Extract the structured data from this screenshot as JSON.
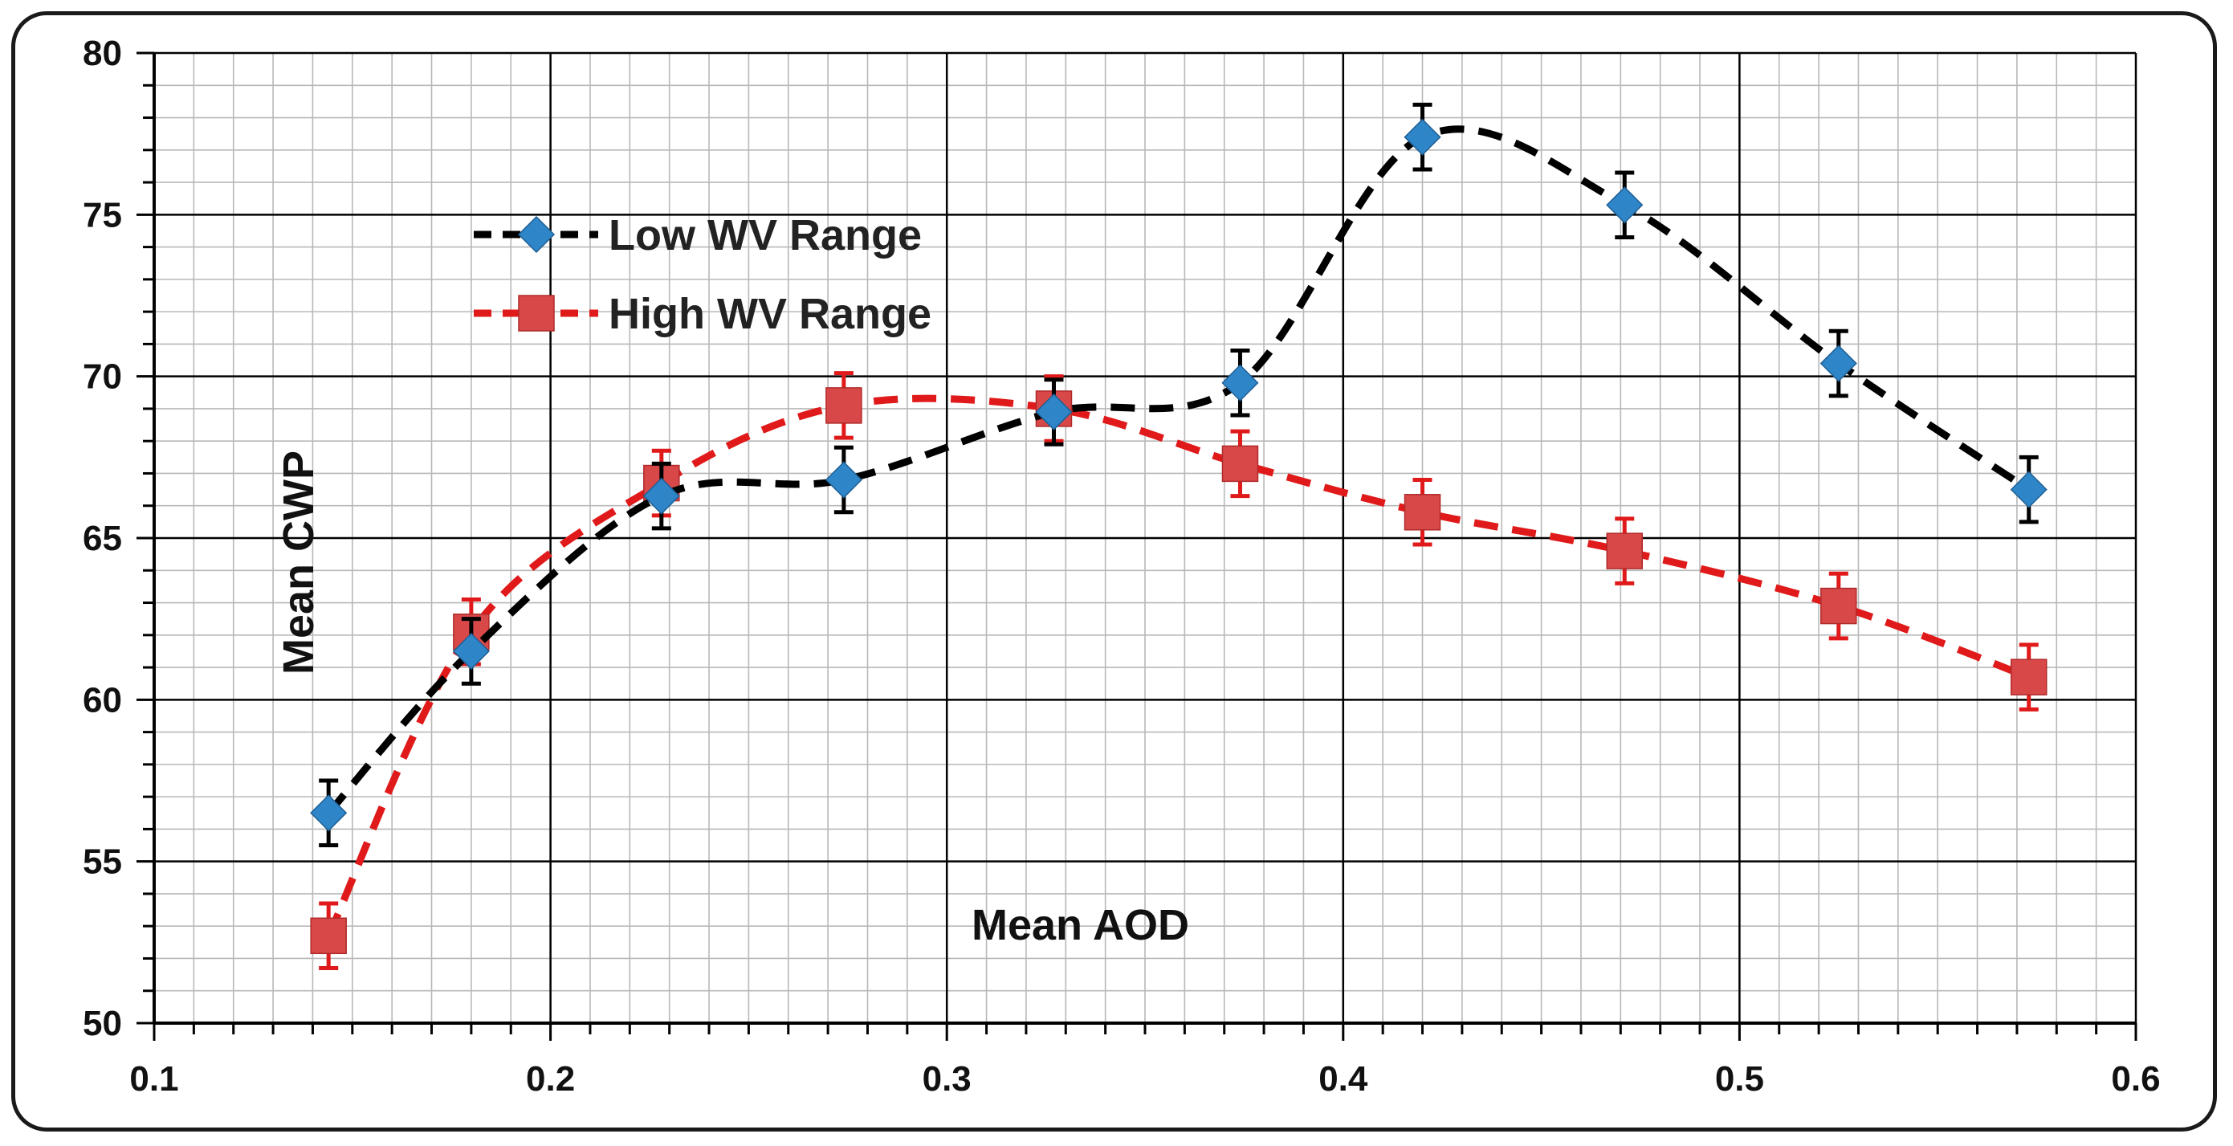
{
  "chart_data": {
    "type": "line",
    "title": "",
    "xlabel": "Mean  AOD",
    "ylabel": "Mean CWP",
    "xlim": [
      0.1,
      0.6
    ],
    "ylim": [
      50,
      80
    ],
    "x_ticks": [
      "0.1",
      "0.2",
      "0.3",
      "0.4",
      "0.5",
      "0.6"
    ],
    "y_ticks": [
      "50",
      "55",
      "60",
      "65",
      "70",
      "75",
      "80"
    ],
    "grid": true,
    "legend_position": "top-left",
    "series": [
      {
        "name": "Low WV Range",
        "color": "#000000",
        "marker": "diamond",
        "marker_color": "#2e86c8",
        "x": [
          0.144,
          0.18,
          0.228,
          0.274,
          0.327,
          0.374,
          0.42,
          0.471,
          0.525,
          0.573
        ],
        "y": [
          56.5,
          61.5,
          66.3,
          66.8,
          68.9,
          69.8,
          77.4,
          75.3,
          70.4,
          66.5
        ],
        "error": [
          1.0,
          1.0,
          1.0,
          1.0,
          1.0,
          1.0,
          1.0,
          1.0,
          1.0,
          1.0
        ]
      },
      {
        "name": "High WV Range",
        "color": "#e01a1a",
        "marker": "square",
        "marker_color": "#d94848",
        "x": [
          0.144,
          0.18,
          0.228,
          0.274,
          0.327,
          0.374,
          0.42,
          0.471,
          0.525,
          0.573
        ],
        "y": [
          52.7,
          62.1,
          66.7,
          69.1,
          69.0,
          67.3,
          65.8,
          64.6,
          62.9,
          60.7
        ],
        "error": [
          1.0,
          1.0,
          1.0,
          1.0,
          1.0,
          1.0,
          1.0,
          1.0,
          1.0,
          1.0
        ]
      }
    ]
  }
}
